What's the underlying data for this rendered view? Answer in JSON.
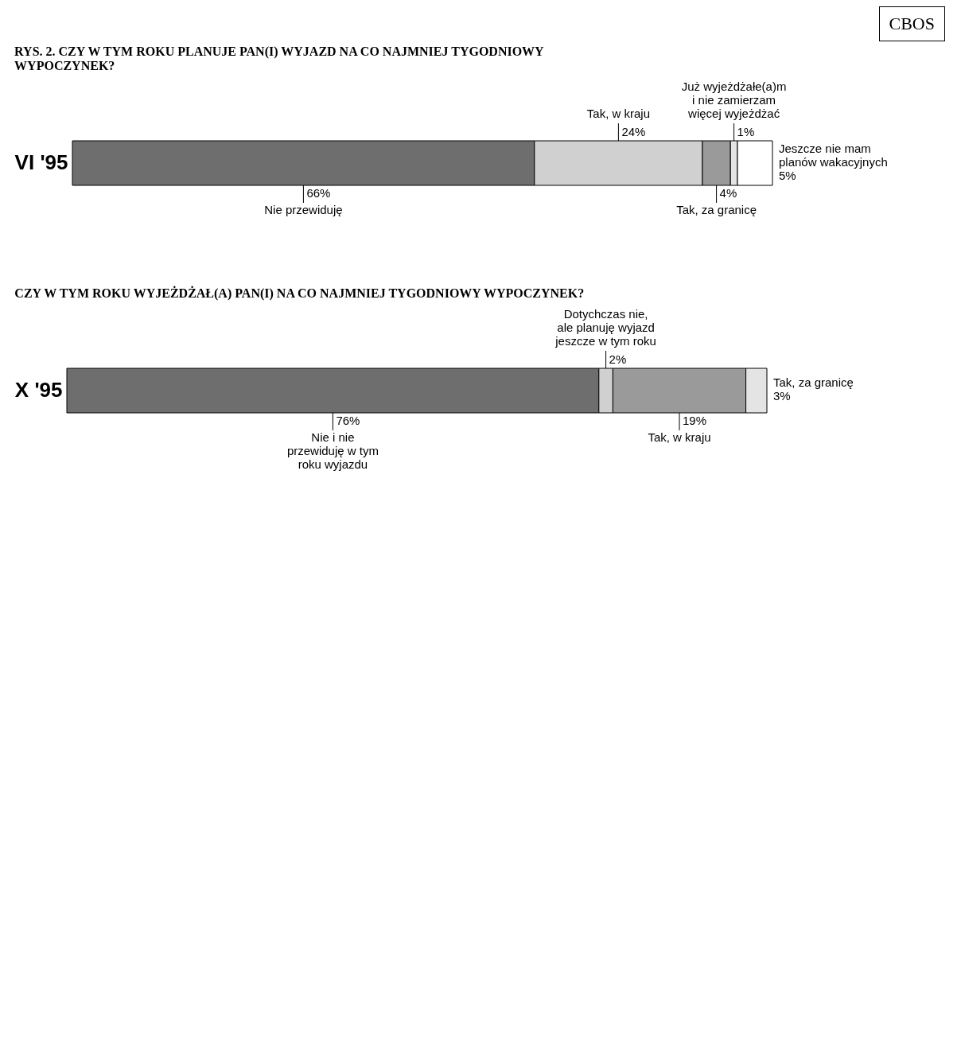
{
  "chart_data": [
    {
      "type": "bar",
      "orientation": "horizontal",
      "stacked": true,
      "legend": false,
      "tick_labels": "y",
      "title": "RYS. 2. CZY W TYM ROKU PLANUJE PAN(I) WYJAZD NA CO NAJMNIEJ TYGODNIOWY WYPOCZYNEK?",
      "annotations": [
        "CBOS"
      ],
      "categories": [
        "VI '95"
      ],
      "xlim": [
        0,
        100
      ],
      "series": [
        {
          "name": "Nie przewiduję",
          "color": "#6e6e6e",
          "values": [
            66
          ],
          "value_labels": [
            "66%"
          ]
        },
        {
          "name": "Tak, w kraju",
          "color": "#d0d0d0",
          "values": [
            24
          ],
          "value_labels": [
            "24%"
          ]
        },
        {
          "name": "Tak, za granicę",
          "color": "#9a9a9a",
          "values": [
            4
          ],
          "value_labels": [
            "4%"
          ]
        },
        {
          "name": "Już wyjeżdżałe(a)m i nie zamierzam więcej wyjeżdżać",
          "color": "#e4e4e4",
          "values": [
            1
          ],
          "value_labels": [
            "1%"
          ]
        },
        {
          "name": "Jeszcze nie mam planów wakacyjnych",
          "color": "#ffffff",
          "values": [
            5
          ],
          "value_labels": [
            "5%"
          ]
        }
      ]
    },
    {
      "type": "bar",
      "orientation": "horizontal",
      "stacked": true,
      "legend": false,
      "tick_labels": "y",
      "title": "CZY W TYM ROKU WYJEŻDŻAŁ(A) PAN(I) NA CO NAJMNIEJ TYGODNIOWY WYPOCZYNEK?",
      "categories": [
        "X '95"
      ],
      "xlim": [
        0,
        100
      ],
      "series": [
        {
          "name": "Nie i nie przewiduję w tym roku wyjazdu",
          "color": "#6e6e6e",
          "values": [
            76
          ],
          "value_labels": [
            "76%"
          ]
        },
        {
          "name": "Dotychczas nie, ale planuję wyjazd jeszcze w tym roku",
          "color": "#d0d0d0",
          "values": [
            2
          ],
          "value_labels": [
            "2%"
          ]
        },
        {
          "name": "Tak, w kraju",
          "color": "#9a9a9a",
          "values": [
            19
          ],
          "value_labels": [
            "19%"
          ]
        },
        {
          "name": "Tak, za granicę",
          "color": "#e4e4e4",
          "values": [
            3
          ],
          "value_labels": [
            "3%"
          ]
        }
      ]
    }
  ]
}
